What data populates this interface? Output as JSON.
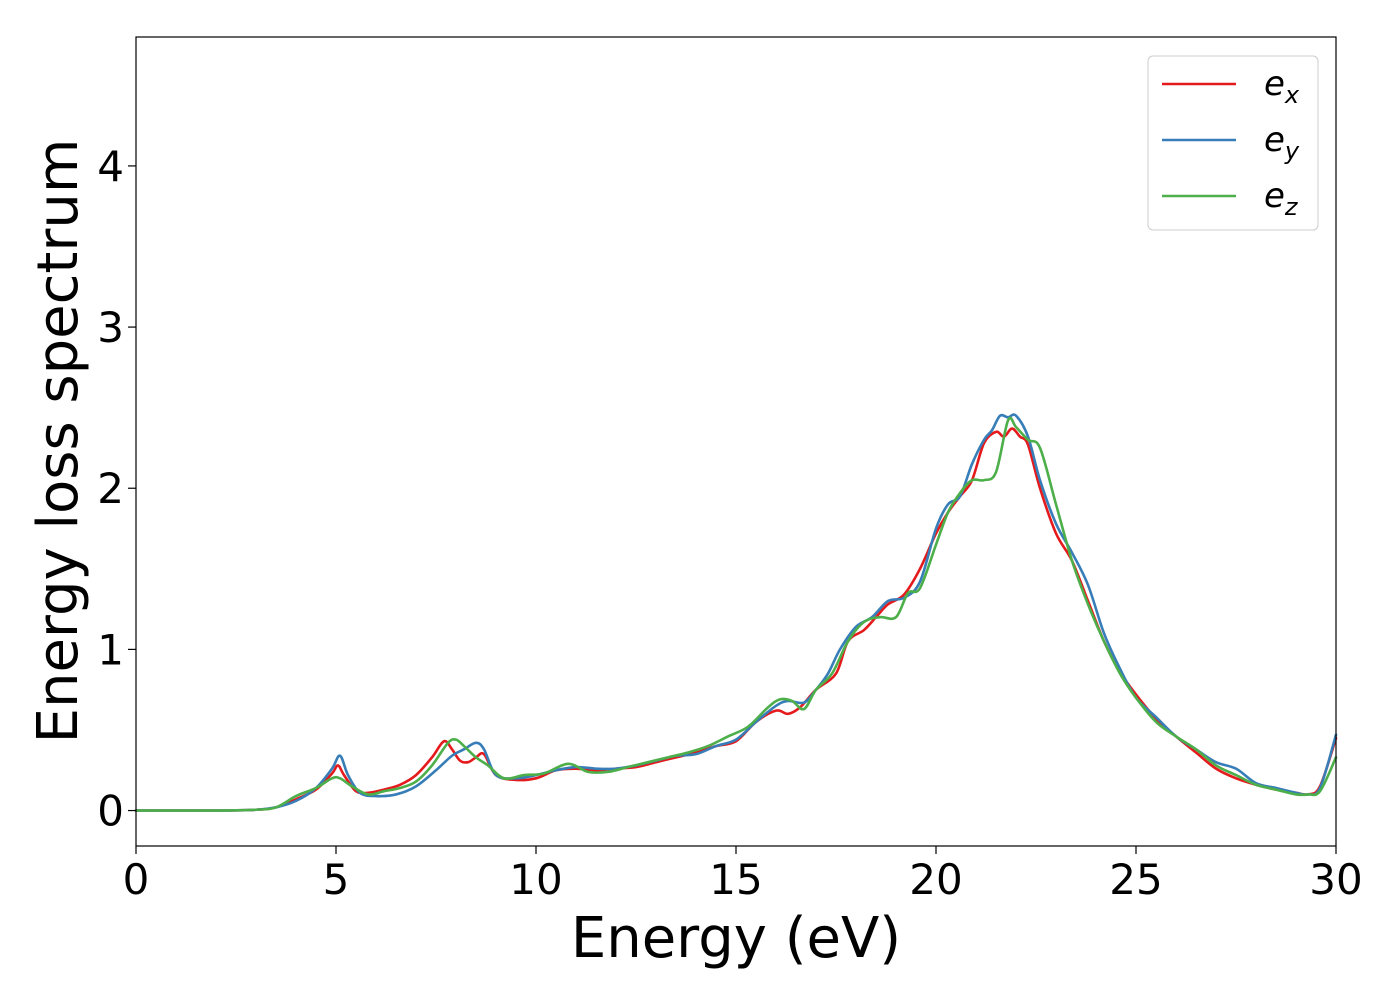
{
  "chart_data": {
    "type": "line",
    "title": "",
    "xlabel": "Energy (eV)",
    "ylabel": "Energy loss spectrum",
    "xlim": [
      0,
      30
    ],
    "ylim": [
      -0.22,
      4.8
    ],
    "xticks": [
      0,
      5,
      10,
      15,
      20,
      25,
      30
    ],
    "yticks": [
      0,
      1,
      2,
      3,
      4
    ],
    "grid": false,
    "legend_position": "top-right",
    "series": [
      {
        "name_base": "e",
        "name_sub": "x",
        "color": "#e41a1c",
        "x": [
          0,
          1,
          2,
          3,
          3.5,
          4,
          4.5,
          4.9,
          5.05,
          5.2,
          5.5,
          5.8,
          6.2,
          6.6,
          7,
          7.4,
          7.7,
          7.9,
          8.1,
          8.3,
          8.5,
          8.7,
          9,
          9.5,
          10,
          10.5,
          11,
          11.5,
          12,
          12.5,
          13,
          13.5,
          14,
          14.5,
          15,
          15.5,
          16,
          16.3,
          16.6,
          17,
          17.5,
          17.8,
          18.2,
          18.5,
          18.8,
          19.2,
          19.6,
          20,
          20.3,
          20.6,
          20.9,
          21.2,
          21.5,
          21.7,
          21.9,
          22.1,
          22.3,
          22.6,
          23,
          23.4,
          23.8,
          24.2,
          24.6,
          25,
          25.5,
          26,
          26.5,
          27,
          27.5,
          28,
          28.5,
          29,
          29.3,
          29.6,
          30
        ],
        "y": [
          0,
          0,
          0,
          0.005,
          0.02,
          0.07,
          0.13,
          0.23,
          0.28,
          0.22,
          0.12,
          0.11,
          0.13,
          0.16,
          0.22,
          0.33,
          0.43,
          0.38,
          0.31,
          0.3,
          0.33,
          0.35,
          0.22,
          0.19,
          0.2,
          0.25,
          0.26,
          0.25,
          0.26,
          0.27,
          0.3,
          0.33,
          0.36,
          0.4,
          0.43,
          0.55,
          0.62,
          0.6,
          0.64,
          0.75,
          0.85,
          1.05,
          1.12,
          1.2,
          1.28,
          1.34,
          1.5,
          1.72,
          1.85,
          1.95,
          2.05,
          2.28,
          2.35,
          2.32,
          2.37,
          2.32,
          2.27,
          2.0,
          1.72,
          1.55,
          1.3,
          1.05,
          0.86,
          0.72,
          0.57,
          0.46,
          0.36,
          0.26,
          0.2,
          0.16,
          0.13,
          0.11,
          0.1,
          0.15,
          0.45
        ]
      },
      {
        "name_base": "e",
        "name_sub": "y",
        "color": "#377eb8",
        "x": [
          0,
          1,
          2,
          3,
          3.5,
          4,
          4.5,
          4.9,
          5.1,
          5.3,
          5.6,
          6,
          6.5,
          7,
          7.5,
          7.9,
          8.2,
          8.5,
          8.7,
          9,
          9.5,
          10,
          10.5,
          11,
          11.5,
          12,
          12.5,
          13,
          13.5,
          14,
          14.5,
          15,
          15.5,
          16,
          16.3,
          16.7,
          17,
          17.3,
          17.6,
          18,
          18.4,
          18.8,
          19.2,
          19.6,
          20,
          20.3,
          20.6,
          20.9,
          21.2,
          21.4,
          21.6,
          21.8,
          22,
          22.3,
          22.6,
          23,
          23.4,
          23.8,
          24.2,
          24.6,
          25,
          25.5,
          26,
          26.5,
          27,
          27.5,
          28,
          28.5,
          29,
          29.3,
          29.6,
          30
        ],
        "y": [
          0,
          0,
          0,
          0.005,
          0.02,
          0.06,
          0.14,
          0.26,
          0.34,
          0.22,
          0.11,
          0.09,
          0.1,
          0.15,
          0.25,
          0.34,
          0.38,
          0.42,
          0.38,
          0.22,
          0.2,
          0.22,
          0.25,
          0.27,
          0.26,
          0.26,
          0.28,
          0.31,
          0.34,
          0.35,
          0.4,
          0.44,
          0.55,
          0.65,
          0.68,
          0.67,
          0.75,
          0.85,
          1.0,
          1.14,
          1.2,
          1.3,
          1.32,
          1.42,
          1.75,
          1.9,
          1.95,
          2.15,
          2.3,
          2.36,
          2.45,
          2.44,
          2.45,
          2.32,
          2.05,
          1.78,
          1.6,
          1.4,
          1.1,
          0.88,
          0.7,
          0.58,
          0.46,
          0.38,
          0.3,
          0.26,
          0.17,
          0.14,
          0.11,
          0.1,
          0.14,
          0.47
        ]
      },
      {
        "name_base": "e",
        "name_sub": "z",
        "color": "#4daf4a",
        "x": [
          0,
          1,
          2,
          3,
          3.5,
          4,
          4.5,
          4.9,
          5.1,
          5.4,
          5.8,
          6.2,
          6.6,
          7,
          7.4,
          7.8,
          8,
          8.2,
          8.5,
          8.8,
          9.2,
          9.7,
          10.2,
          10.8,
          11.3,
          11.8,
          12.3,
          12.8,
          13.3,
          13.8,
          14.3,
          14.8,
          15.3,
          15.8,
          16.1,
          16.4,
          16.7,
          17,
          17.4,
          17.8,
          18.2,
          18.6,
          19,
          19.3,
          19.6,
          20,
          20.3,
          20.6,
          20.9,
          21.2,
          21.5,
          21.8,
          22,
          22.3,
          22.6,
          23,
          23.4,
          23.8,
          24.2,
          24.6,
          25,
          25.5,
          26,
          26.5,
          27,
          27.5,
          28,
          28.5,
          29,
          29.3,
          29.6,
          30
        ],
        "y": [
          0,
          0,
          0,
          0.005,
          0.02,
          0.09,
          0.14,
          0.2,
          0.2,
          0.15,
          0.1,
          0.12,
          0.14,
          0.18,
          0.28,
          0.42,
          0.44,
          0.4,
          0.33,
          0.28,
          0.2,
          0.22,
          0.23,
          0.29,
          0.24,
          0.24,
          0.27,
          0.3,
          0.33,
          0.36,
          0.4,
          0.46,
          0.52,
          0.64,
          0.69,
          0.68,
          0.63,
          0.75,
          0.85,
          1.05,
          1.17,
          1.2,
          1.2,
          1.35,
          1.38,
          1.65,
          1.85,
          1.97,
          2.05,
          2.05,
          2.1,
          2.42,
          2.38,
          2.3,
          2.25,
          1.9,
          1.55,
          1.28,
          1.05,
          0.85,
          0.7,
          0.55,
          0.46,
          0.38,
          0.28,
          0.22,
          0.16,
          0.13,
          0.1,
          0.1,
          0.12,
          0.33
        ]
      }
    ]
  }
}
